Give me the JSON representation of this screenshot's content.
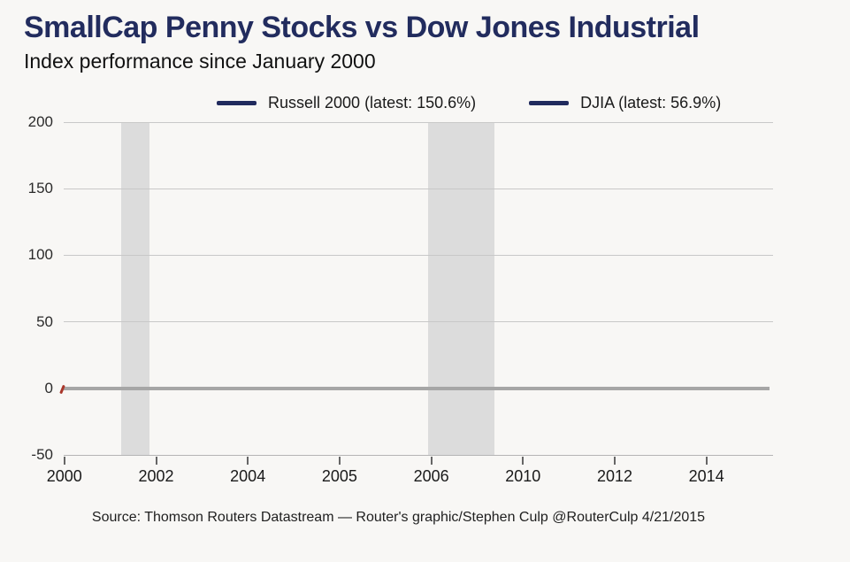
{
  "header": {
    "title": "SmallCap Penny Stocks vs Dow Jones Industrial",
    "subtitle": "Index performance since January 2000"
  },
  "legend": {
    "items": [
      {
        "label": "Russell 2000 (latest: 150.6%)",
        "swatch_color": "#212b5e"
      },
      {
        "label": "DJIA (latest: 56.9%)",
        "swatch_color": "#212b5e"
      }
    ]
  },
  "chart_data": {
    "type": "line",
    "title": "SmallCap Penny Stocks vs Dow Jones Industrial",
    "subtitle": "Index performance since January 2000",
    "series": [
      {
        "name": "Russell 2000",
        "latest_value_pct": 150.6,
        "color": "#212b5e"
      },
      {
        "name": "DJIA",
        "latest_value_pct": 56.9,
        "color": "#212b5e"
      }
    ],
    "visible_line_paths": "none - only a small red origin marker at 0% on the left edge",
    "origin_marker": {
      "y_value": 0,
      "x_frac": 0.0,
      "color": "#a9362a"
    },
    "ylim": [
      -50,
      200
    ],
    "y_tick_values": [
      200,
      150,
      100,
      50,
      0,
      -50
    ],
    "y_tick_labels": [
      "200",
      "150",
      "100",
      "50",
      "0",
      "-50"
    ],
    "x_tick_labels": [
      "2000",
      "2002",
      "2004",
      "2005",
      "2006",
      "2010",
      "2012",
      "2014"
    ],
    "x_first_tick_frac": 0.001,
    "x_tick_spacing_frac": 0.1293,
    "grid": "horizontal gridlines only",
    "zero_baseline": {
      "value": 0,
      "color": "#a6a6a6",
      "thickness_px": 4
    },
    "shaded_bands": [
      {
        "x_frac": 0.081,
        "width_frac": 0.04,
        "color": "#dcdcdc"
      },
      {
        "x_frac": 0.514,
        "width_frac": 0.093,
        "color": "#dcdcdc"
      }
    ],
    "legend_position": "top center, horizontal"
  },
  "source": "Source: Thomson Routers Datastream — Router's graphic/Stephen Culp @RouterCulp 4/21/2015",
  "colors": {
    "background": "#f8f7f5",
    "title": "#222c5e",
    "gridline": "#c8c8c8",
    "band": "#dcdcdc",
    "zero_line": "#a6a6a6",
    "origin_marker": "#a9362a"
  }
}
